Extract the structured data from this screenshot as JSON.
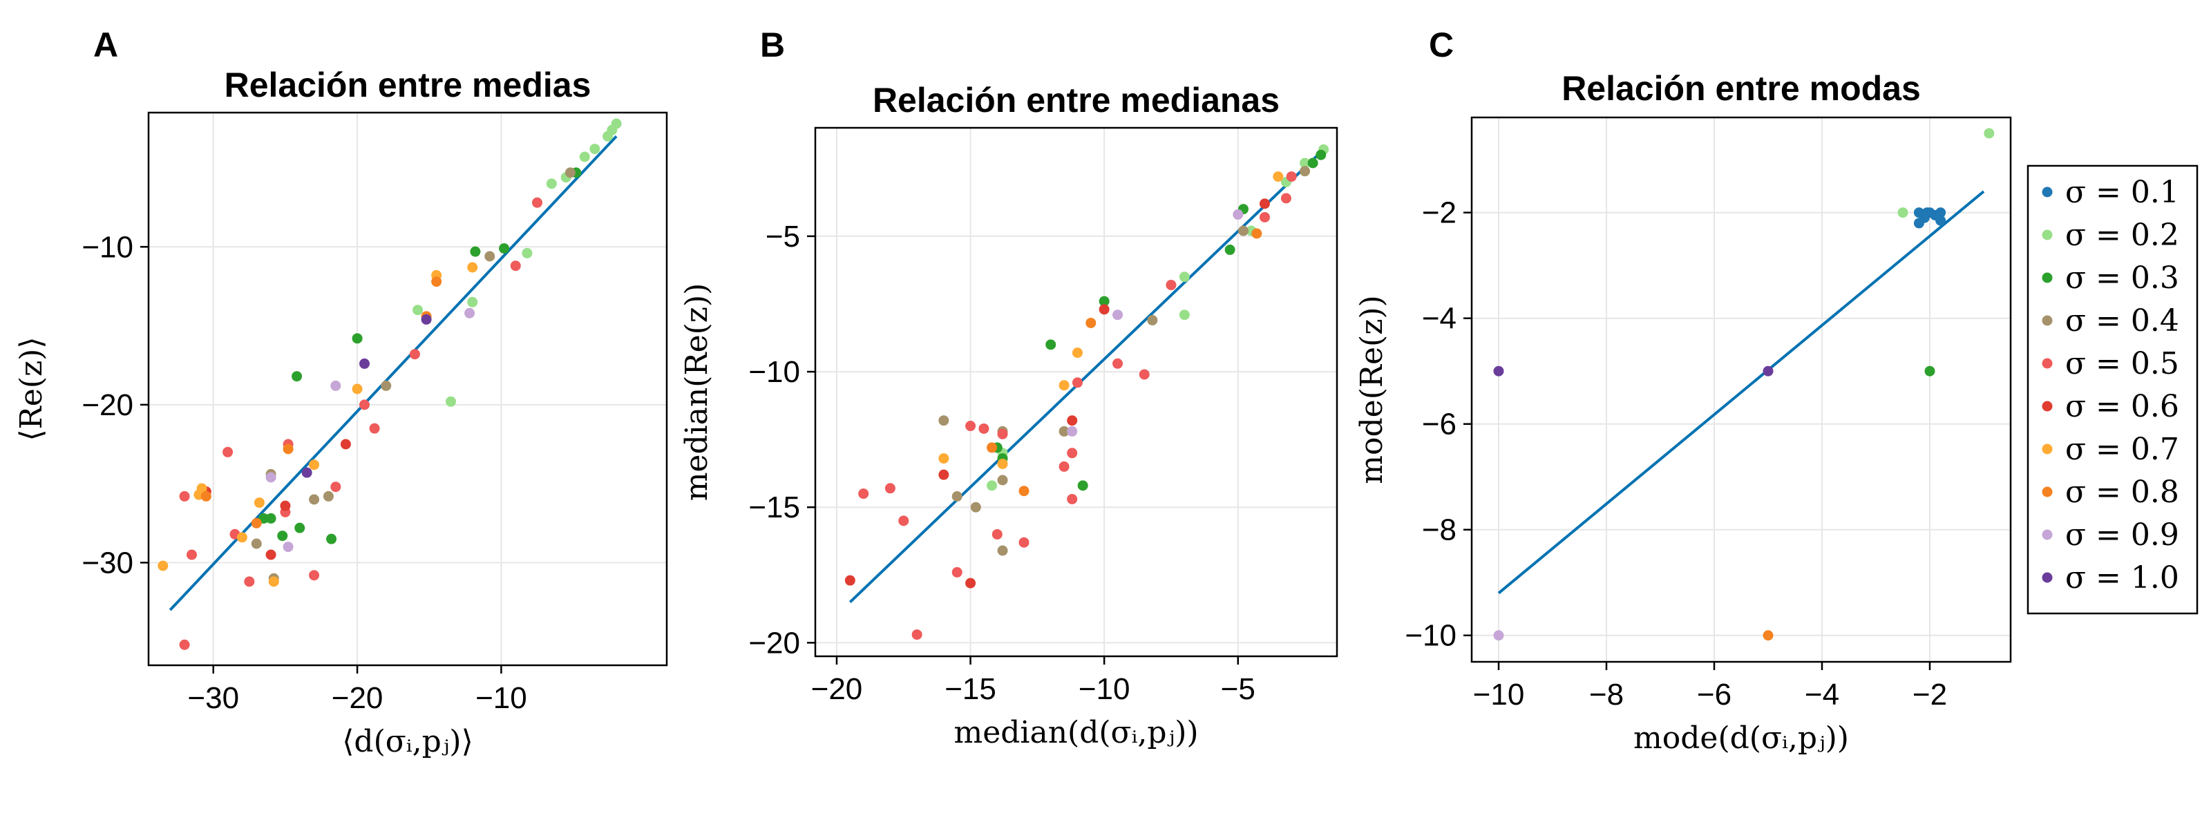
{
  "colors": {
    "fit_line": "#0072b2",
    "grid": "#e6e6e6",
    "series": [
      "#1f77b4",
      "#98df8a",
      "#2ca02c",
      "#a5926a",
      "#ef5a5a",
      "#e03c31",
      "#ffaa33",
      "#f58220",
      "#c5a6d6",
      "#6a3d9a"
    ]
  },
  "legend": {
    "placement": "right",
    "entries": [
      "σ = 0.1",
      "σ = 0.2",
      "σ = 0.3",
      "σ = 0.4",
      "σ = 0.5",
      "σ = 0.6",
      "σ = 0.7",
      "σ = 0.8",
      "σ = 0.9",
      "σ = 1.0"
    ]
  },
  "chart_data": [
    {
      "panel": "A",
      "type": "scatter",
      "title": "Relación entre medias",
      "xlabel": "⟨d(σᵢ,pⱼ)⟩",
      "ylabel": "⟨Re(z)⟩",
      "xlim": [
        -34.5,
        1.5
      ],
      "ylim": [
        -36.5,
        -1.5
      ],
      "xticks": [
        -30,
        -20,
        -10
      ],
      "xtick_labels": [
        "−30",
        "−20",
        "−10"
      ],
      "yticks": [
        -30,
        -20,
        -10
      ],
      "ytick_labels": [
        "−30",
        "−20",
        "−10"
      ],
      "grid": true,
      "fit_line": [
        [
          -33,
          -33
        ],
        [
          -2,
          -3
        ]
      ],
      "points": [
        [
          -2.0,
          -2.2,
          1
        ],
        [
          -2.3,
          -2.6,
          1
        ],
        [
          -2.6,
          -3.0,
          1
        ],
        [
          -3.5,
          -3.8,
          1
        ],
        [
          -4.2,
          -4.3,
          1
        ],
        [
          -5.5,
          -5.6,
          1
        ],
        [
          -6.5,
          -6.0,
          1
        ],
        [
          -8.2,
          -10.4,
          1
        ],
        [
          -12.0,
          -13.5,
          1
        ],
        [
          -13.5,
          -19.8,
          1
        ],
        [
          -15.8,
          -14.0,
          1
        ],
        [
          -4.8,
          -5.3,
          2
        ],
        [
          -9.8,
          -10.1,
          2
        ],
        [
          -11.8,
          -10.3,
          2
        ],
        [
          -20.0,
          -15.8,
          2
        ],
        [
          -24.2,
          -18.2,
          2
        ],
        [
          -21.8,
          -28.5,
          2
        ],
        [
          -25.2,
          -28.3,
          2
        ],
        [
          -26.5,
          -27.2,
          2
        ],
        [
          -26.0,
          -27.2,
          2
        ],
        [
          -24.0,
          -27.8,
          2
        ],
        [
          -5.2,
          -5.3,
          3
        ],
        [
          -10.8,
          -10.6,
          3
        ],
        [
          -18.0,
          -18.8,
          3
        ],
        [
          -22.0,
          -25.8,
          3
        ],
        [
          -23.0,
          -26.0,
          3
        ],
        [
          -26.0,
          -24.4,
          3
        ],
        [
          -27.0,
          -28.8,
          3
        ],
        [
          -25.8,
          -31.0,
          3
        ],
        [
          -7.5,
          -7.2,
          4
        ],
        [
          -9.0,
          -11.2,
          4
        ],
        [
          -16.0,
          -16.8,
          4
        ],
        [
          -19.5,
          -20.0,
          4
        ],
        [
          -18.8,
          -21.5,
          4
        ],
        [
          -24.8,
          -22.5,
          4
        ],
        [
          -21.5,
          -25.2,
          4
        ],
        [
          -25.0,
          -26.8,
          4
        ],
        [
          -29.0,
          -23.0,
          4
        ],
        [
          -28.5,
          -28.2,
          4
        ],
        [
          -31.5,
          -29.5,
          4
        ],
        [
          -32.0,
          -35.2,
          4
        ],
        [
          -27.5,
          -31.2,
          4
        ],
        [
          -23.0,
          -30.8,
          4
        ],
        [
          -32.0,
          -25.8,
          4
        ],
        [
          -20.8,
          -22.5,
          5
        ],
        [
          -25.0,
          -26.4,
          5
        ],
        [
          -30.5,
          -25.5,
          5
        ],
        [
          -26.0,
          -29.5,
          5
        ],
        [
          -14.5,
          -11.8,
          6
        ],
        [
          -12.0,
          -11.3,
          6
        ],
        [
          -20.0,
          -19.0,
          6
        ],
        [
          -23.0,
          -23.8,
          6
        ],
        [
          -26.8,
          -26.2,
          6
        ],
        [
          -28.0,
          -28.4,
          6
        ],
        [
          -30.8,
          -25.3,
          6
        ],
        [
          -31.0,
          -25.7,
          6
        ],
        [
          -33.5,
          -30.2,
          6
        ],
        [
          -25.8,
          -31.2,
          6
        ],
        [
          -14.5,
          -12.2,
          7
        ],
        [
          -15.2,
          -14.4,
          7
        ],
        [
          -24.8,
          -22.8,
          7
        ],
        [
          -27.0,
          -27.5,
          7
        ],
        [
          -30.5,
          -25.8,
          7
        ],
        [
          -12.2,
          -14.2,
          8
        ],
        [
          -21.5,
          -18.8,
          8
        ],
        [
          -26.0,
          -24.6,
          8
        ],
        [
          -24.8,
          -29.0,
          8
        ],
        [
          -15.2,
          -14.6,
          9
        ],
        [
          -19.5,
          -17.4,
          9
        ],
        [
          -23.5,
          -24.3,
          9
        ]
      ]
    },
    {
      "panel": "B",
      "type": "scatter",
      "title": "Relación entre medianas",
      "xlabel": "median(d(σᵢ,pⱼ))",
      "ylabel": "median(Re(z))",
      "xlim": [
        -20.8,
        -1.3
      ],
      "ylim": [
        -20.5,
        -1.0
      ],
      "xticks": [
        -20,
        -15,
        -10,
        -5
      ],
      "xtick_labels": [
        "−20",
        "−15",
        "−10",
        "−5"
      ],
      "yticks": [
        -20,
        -15,
        -10,
        -5
      ],
      "ytick_labels": [
        "−20",
        "−15",
        "−10",
        "−5"
      ],
      "grid": true,
      "fit_line": [
        [
          -19.5,
          -18.5
        ],
        [
          -1.8,
          -1.8
        ]
      ],
      "points": [
        [
          -1.8,
          -1.8,
          1
        ],
        [
          -2.5,
          -2.3,
          1
        ],
        [
          -3.2,
          -3.0,
          1
        ],
        [
          -4.5,
          -4.8,
          1
        ],
        [
          -7.0,
          -6.5,
          1
        ],
        [
          -7.0,
          -7.9,
          1
        ],
        [
          -13.8,
          -13.0,
          1
        ],
        [
          -14.2,
          -14.2,
          1
        ],
        [
          -1.9,
          -2.0,
          2
        ],
        [
          -2.2,
          -2.3,
          2
        ],
        [
          -5.3,
          -5.5,
          2
        ],
        [
          -10.0,
          -7.4,
          2
        ],
        [
          -12.0,
          -9.0,
          2
        ],
        [
          -14.0,
          -12.8,
          2
        ],
        [
          -13.8,
          -13.2,
          2
        ],
        [
          -10.8,
          -14.2,
          2
        ],
        [
          -4.8,
          -4.0,
          2
        ],
        [
          -2.5,
          -2.6,
          3
        ],
        [
          -4.8,
          -4.8,
          3
        ],
        [
          -8.2,
          -8.1,
          3
        ],
        [
          -11.5,
          -12.2,
          3
        ],
        [
          -13.8,
          -12.2,
          3
        ],
        [
          -16.0,
          -11.8,
          3
        ],
        [
          -13.8,
          -16.6,
          3
        ],
        [
          -14.8,
          -15.0,
          3
        ],
        [
          -15.5,
          -14.6,
          3
        ],
        [
          -13.8,
          -14.0,
          3
        ],
        [
          -3.0,
          -2.8,
          4
        ],
        [
          -4.0,
          -4.3,
          4
        ],
        [
          -7.5,
          -6.8,
          4
        ],
        [
          -8.5,
          -10.1,
          4
        ],
        [
          -9.5,
          -9.7,
          4
        ],
        [
          -11.0,
          -10.4,
          4
        ],
        [
          -11.5,
          -13.5,
          4
        ],
        [
          -11.2,
          -13.0,
          4
        ],
        [
          -13.0,
          -16.3,
          4
        ],
        [
          -14.0,
          -16.0,
          4
        ],
        [
          -15.0,
          -12.0,
          4
        ],
        [
          -14.5,
          -12.1,
          4
        ],
        [
          -13.8,
          -12.3,
          4
        ],
        [
          -17.0,
          -19.7,
          4
        ],
        [
          -15.5,
          -17.4,
          4
        ],
        [
          -17.5,
          -15.5,
          4
        ],
        [
          -18.0,
          -14.3,
          4
        ],
        [
          -19.0,
          -14.5,
          4
        ],
        [
          -11.2,
          -14.7,
          4
        ],
        [
          -3.2,
          -3.6,
          4
        ],
        [
          -4.0,
          -3.8,
          5
        ],
        [
          -10.0,
          -7.7,
          5
        ],
        [
          -11.2,
          -11.8,
          5
        ],
        [
          -15.0,
          -17.8,
          5
        ],
        [
          -19.5,
          -17.7,
          5
        ],
        [
          -16.0,
          -13.8,
          5
        ],
        [
          -11.0,
          -9.3,
          6
        ],
        [
          -11.5,
          -10.5,
          6
        ],
        [
          -16.0,
          -13.2,
          6
        ],
        [
          -13.8,
          -13.4,
          6
        ],
        [
          -3.5,
          -2.8,
          6
        ],
        [
          -10.5,
          -8.2,
          7
        ],
        [
          -13.0,
          -14.4,
          7
        ],
        [
          -14.2,
          -12.8,
          7
        ],
        [
          -4.3,
          -4.9,
          7
        ],
        [
          -5.0,
          -4.2,
          8
        ],
        [
          -9.5,
          -7.9,
          8
        ],
        [
          -11.2,
          -12.2,
          8
        ]
      ]
    },
    {
      "panel": "C",
      "type": "scatter",
      "title": "Relación entre modas",
      "xlabel": "mode(d(σᵢ,pⱼ))",
      "ylabel": "mode(Re(z))",
      "xlim": [
        -10.5,
        -0.5
      ],
      "ylim": [
        -10.5,
        -0.2
      ],
      "xticks": [
        -10,
        -8,
        -6,
        -4,
        -2
      ],
      "xtick_labels": [
        "−10",
        "−8",
        "−6",
        "−4",
        "−2"
      ],
      "yticks": [
        -10,
        -8,
        -6,
        -4,
        -2
      ],
      "ytick_labels": [
        "−10",
        "−8",
        "−6",
        "−4",
        "−2"
      ],
      "grid": true,
      "fit_line": [
        [
          -10,
          -9.2
        ],
        [
          -1,
          -1.6
        ]
      ],
      "points": [
        [
          -2.2,
          -2.0,
          0
        ],
        [
          -2.0,
          -2.0,
          0
        ],
        [
          -1.9,
          -2.05,
          0
        ],
        [
          -1.8,
          -2.0,
          0
        ],
        [
          -2.1,
          -2.1,
          0
        ],
        [
          -1.8,
          -2.15,
          0
        ],
        [
          -2.2,
          -2.2,
          0
        ],
        [
          -2.05,
          -2.0,
          0
        ],
        [
          -0.9,
          -0.5,
          1
        ],
        [
          -2.5,
          -2.0,
          1
        ],
        [
          -2.0,
          -5.0,
          2
        ],
        [
          -5.0,
          -10.0,
          7
        ],
        [
          -10.0,
          -10.0,
          8
        ],
        [
          -10.0,
          -5.0,
          9
        ],
        [
          -5.0,
          -5.0,
          9
        ]
      ]
    }
  ],
  "panels": [
    {
      "letter": "A"
    },
    {
      "letter": "B"
    },
    {
      "letter": "C"
    }
  ]
}
